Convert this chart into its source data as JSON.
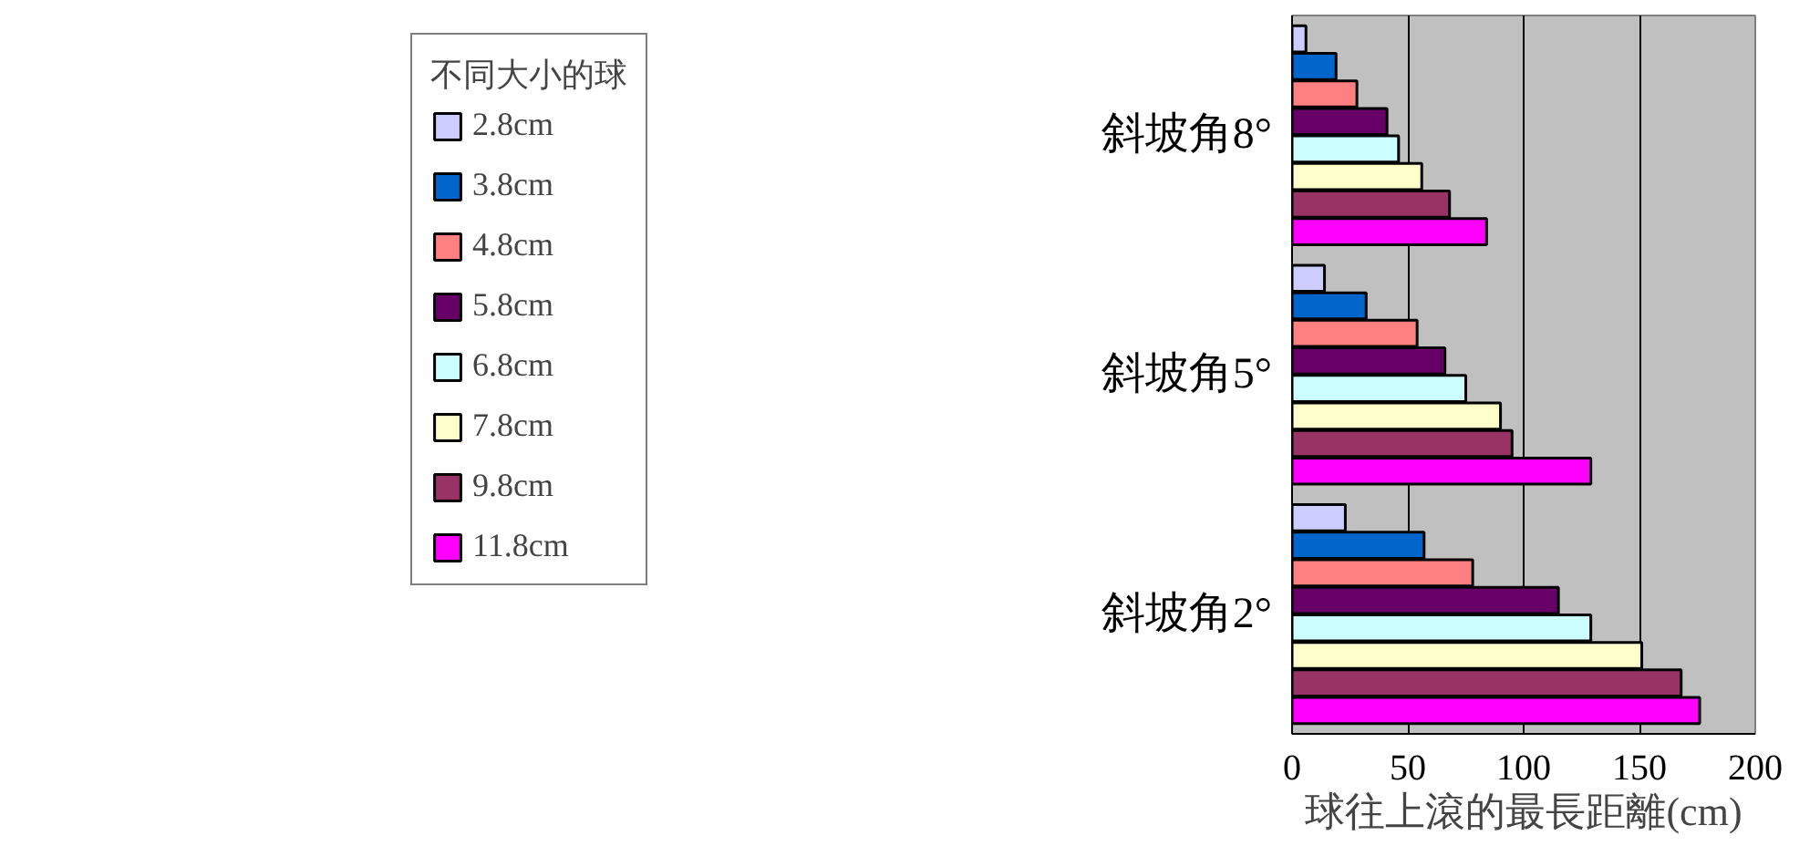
{
  "chart_data": {
    "type": "bar",
    "orientation": "horizontal",
    "xlabel": "球往上滾的最長距離(cm)",
    "legend_title": "不同大小的球",
    "categories": [
      "斜坡角8°",
      "斜坡角5°",
      "斜坡角2°"
    ],
    "series": [
      {
        "name": "2.8cm",
        "color": "#ccccff",
        "values": [
          6,
          14,
          23
        ]
      },
      {
        "name": "3.8cm",
        "color": "#0066cc",
        "values": [
          19,
          32,
          57
        ]
      },
      {
        "name": "4.8cm",
        "color": "#ff8080",
        "values": [
          28,
          54,
          78
        ]
      },
      {
        "name": "5.8cm",
        "color": "#660066",
        "values": [
          41,
          66,
          115
        ]
      },
      {
        "name": "6.8cm",
        "color": "#ccffff",
        "values": [
          46,
          75,
          129
        ]
      },
      {
        "name": "7.8cm",
        "color": "#ffffcc",
        "values": [
          56,
          90,
          151
        ]
      },
      {
        "name": "9.8cm",
        "color": "#993366",
        "values": [
          68,
          95,
          168
        ]
      },
      {
        "name": "11.8cm",
        "color": "#ff00ff",
        "values": [
          84,
          129,
          176
        ]
      }
    ],
    "xlim": [
      0,
      200
    ],
    "xticks": [
      0,
      50,
      100,
      150,
      200
    ],
    "grid": "x",
    "legend": "left"
  }
}
